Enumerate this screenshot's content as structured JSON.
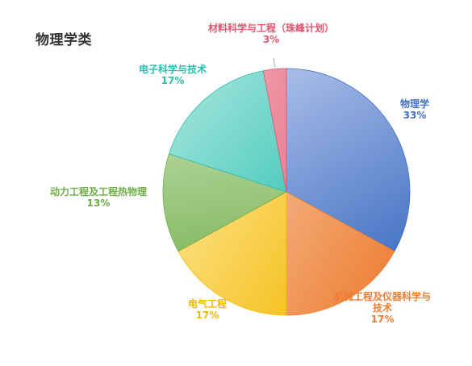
{
  "chart_data": {
    "type": "pie",
    "title": "物理学类",
    "legend": "none",
    "slices": [
      {
        "name": "物理学",
        "value": 33,
        "label_lines": [
          "物理学"
        ],
        "pct": "33%",
        "color": "#4472C4",
        "light": "#AFC1EA"
      },
      {
        "name": "机械工程及仪器科学与技术",
        "value": 17,
        "label_lines": [
          "机械工程及仪器科学与",
          "技术"
        ],
        "pct": "17%",
        "color": "#ED7D31",
        "light": "#F7C6A2"
      },
      {
        "name": "电气工程",
        "value": 17,
        "label_lines": [
          "电气工程"
        ],
        "pct": "17%",
        "color": "#F2B800",
        "light": "#FFE699"
      },
      {
        "name": "动力工程及工程热物理",
        "value": 13,
        "label_lines": [
          "动力工程及工程热物理"
        ],
        "pct": "13%",
        "color": "#70AD47",
        "light": "#C5E0B4"
      },
      {
        "name": "电子科学与技术",
        "value": 17,
        "label_lines": [
          "电子科学与技术"
        ],
        "pct": "17%",
        "color": "#26BFAE",
        "light": "#A2E4DC"
      },
      {
        "name": "材料科学与工程（珠峰计划）",
        "value": 3,
        "label_lines": [
          "材料科学与工程（珠峰计划）"
        ],
        "pct": "3%",
        "color": "#E0566E",
        "light": "#F5B4C0"
      }
    ]
  }
}
